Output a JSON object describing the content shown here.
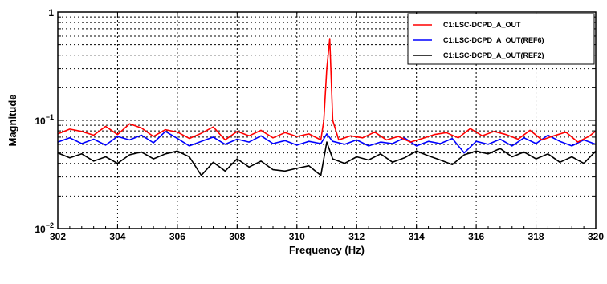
{
  "chart_data": {
    "type": "line",
    "title": "",
    "xlabel": "Frequency (Hz)",
    "ylabel": "Magnitude",
    "xlim": [
      302,
      320
    ],
    "ylim": [
      0.01,
      1
    ],
    "yscale": "log",
    "grid": true,
    "grid_style": "dotted",
    "legend_position": "top-right",
    "x_ticks": [
      302,
      304,
      306,
      308,
      310,
      312,
      314,
      316,
      318,
      320
    ],
    "x_tick_labels": [
      "302",
      "304",
      "306",
      "308",
      "310",
      "312",
      "314",
      "316",
      "318",
      "320"
    ],
    "y_ticks": [
      {
        "value": 1,
        "base": "1",
        "exp": ""
      },
      {
        "value": 0.1,
        "base": "10",
        "exp": "−1"
      },
      {
        "value": 0.01,
        "base": "10",
        "exp": "−2"
      }
    ],
    "series": [
      {
        "name": "C1:LSC-DCPD_A_OUT",
        "color": "#ff0000",
        "x": [
          302.0,
          302.4,
          302.8,
          303.2,
          303.6,
          304.0,
          304.4,
          304.8,
          305.2,
          305.6,
          306.0,
          306.4,
          306.8,
          307.2,
          307.6,
          308.0,
          308.4,
          308.8,
          309.2,
          309.6,
          310.0,
          310.4,
          310.8,
          310.9,
          311.0,
          311.1,
          311.2,
          311.4,
          311.8,
          312.2,
          312.6,
          313.0,
          313.4,
          313.8,
          314.2,
          314.6,
          315.0,
          315.4,
          315.8,
          316.2,
          316.6,
          317.0,
          317.4,
          317.8,
          318.2,
          318.6,
          319.0,
          319.4,
          319.8,
          320.0
        ],
        "y": [
          0.075,
          0.083,
          0.079,
          0.073,
          0.088,
          0.074,
          0.093,
          0.085,
          0.071,
          0.082,
          0.078,
          0.068,
          0.076,
          0.087,
          0.066,
          0.079,
          0.072,
          0.081,
          0.069,
          0.077,
          0.071,
          0.075,
          0.066,
          0.1,
          0.3,
          0.57,
          0.1,
          0.066,
          0.072,
          0.069,
          0.078,
          0.066,
          0.071,
          0.063,
          0.068,
          0.074,
          0.077,
          0.069,
          0.084,
          0.072,
          0.079,
          0.074,
          0.067,
          0.081,
          0.066,
          0.072,
          0.078,
          0.063,
          0.072,
          0.08
        ]
      },
      {
        "name": "C1:LSC-DCPD_A_OUT(REF6)",
        "color": "#0000ff",
        "x": [
          302.0,
          302.4,
          302.8,
          303.2,
          303.6,
          304.0,
          304.4,
          304.8,
          305.2,
          305.6,
          306.0,
          306.4,
          306.8,
          307.2,
          307.6,
          308.0,
          308.4,
          308.8,
          309.2,
          309.6,
          310.0,
          310.4,
          310.8,
          311.0,
          311.2,
          311.6,
          312.0,
          312.4,
          312.8,
          313.2,
          313.6,
          314.0,
          314.4,
          314.8,
          315.2,
          315.6,
          316.0,
          316.4,
          316.8,
          317.2,
          317.6,
          318.0,
          318.4,
          318.8,
          319.2,
          319.6,
          320.0
        ],
        "y": [
          0.063,
          0.069,
          0.061,
          0.067,
          0.059,
          0.071,
          0.066,
          0.073,
          0.062,
          0.079,
          0.068,
          0.058,
          0.064,
          0.07,
          0.06,
          0.067,
          0.063,
          0.072,
          0.061,
          0.065,
          0.059,
          0.064,
          0.061,
          0.075,
          0.064,
          0.06,
          0.066,
          0.058,
          0.063,
          0.061,
          0.069,
          0.058,
          0.064,
          0.061,
          0.068,
          0.05,
          0.064,
          0.06,
          0.067,
          0.058,
          0.069,
          0.061,
          0.073,
          0.064,
          0.058,
          0.066,
          0.06
        ]
      },
      {
        "name": "C1:LSC-DCPD_A_OUT(REF2)",
        "color": "#000000",
        "x": [
          302.0,
          302.4,
          302.8,
          303.2,
          303.6,
          304.0,
          304.4,
          304.8,
          305.2,
          305.6,
          306.0,
          306.4,
          306.8,
          307.2,
          307.6,
          308.0,
          308.4,
          308.8,
          309.2,
          309.6,
          310.0,
          310.4,
          310.8,
          311.0,
          311.2,
          311.6,
          312.0,
          312.4,
          312.8,
          313.2,
          313.6,
          314.0,
          314.4,
          314.8,
          315.2,
          315.6,
          316.0,
          316.4,
          316.8,
          317.2,
          317.6,
          318.0,
          318.4,
          318.8,
          319.2,
          319.6,
          320.0
        ],
        "y": [
          0.05,
          0.045,
          0.049,
          0.042,
          0.046,
          0.04,
          0.048,
          0.051,
          0.044,
          0.049,
          0.052,
          0.046,
          0.031,
          0.041,
          0.034,
          0.044,
          0.037,
          0.042,
          0.035,
          0.034,
          0.036,
          0.038,
          0.031,
          0.063,
          0.044,
          0.04,
          0.046,
          0.043,
          0.049,
          0.041,
          0.045,
          0.052,
          0.047,
          0.043,
          0.039,
          0.048,
          0.052,
          0.049,
          0.055,
          0.046,
          0.051,
          0.044,
          0.049,
          0.041,
          0.046,
          0.04,
          0.052
        ]
      }
    ]
  }
}
